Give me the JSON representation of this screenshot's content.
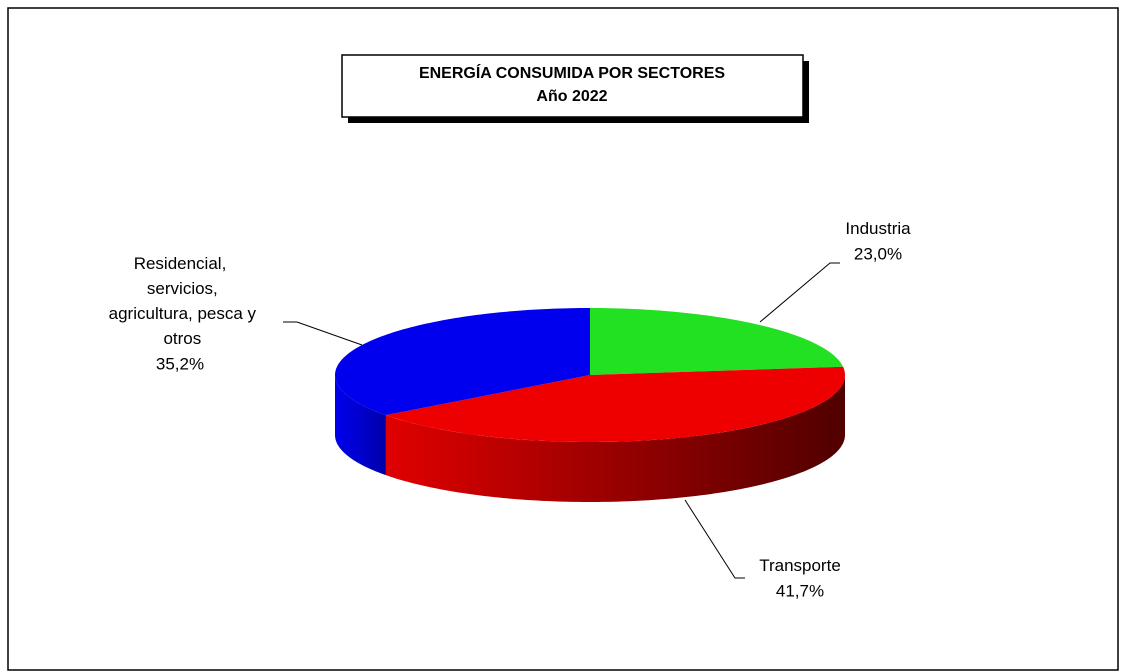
{
  "chart_data": {
    "type": "pie",
    "title": "ENERGÍA CONSUMIDA POR SECTORES",
    "subtitle": "Año 2022",
    "categories": [
      "Industria",
      "Transporte",
      "Residencial, servicios, agricultura, pesca y otros"
    ],
    "values": [
      23.0,
      41.7,
      35.2
    ],
    "value_labels": [
      "23,0%",
      "41,7%",
      "35,2%"
    ],
    "colors": [
      "#22e022",
      "#ee0000",
      "#0000ee"
    ]
  }
}
